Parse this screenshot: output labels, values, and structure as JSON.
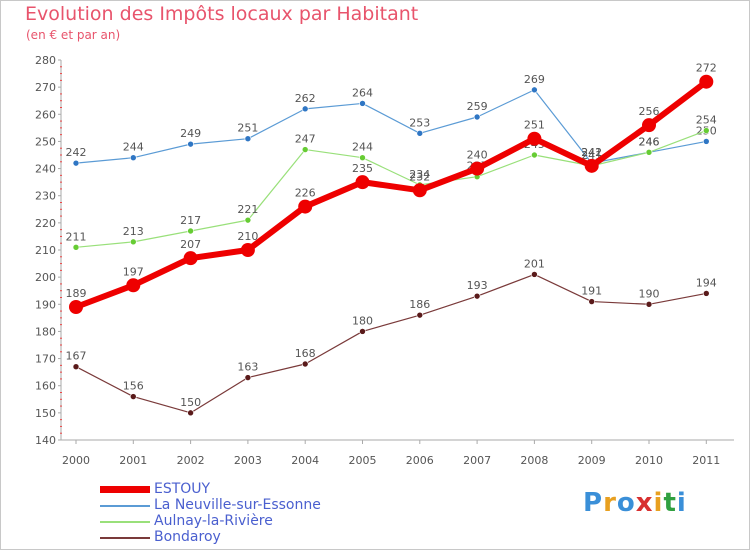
{
  "title": "Evolution des Impôts locaux par Habitant",
  "subtitle": "(en € et par an)",
  "brand": {
    "letters": [
      "P",
      "r",
      "o",
      "x",
      "i",
      "t",
      "i"
    ],
    "colors": [
      "#3a8fd8",
      "#e8a020",
      "#3a8fd8",
      "#d83030",
      "#e8a020",
      "#30a040",
      "#3a8fd8"
    ]
  },
  "chart_data": {
    "type": "line",
    "title": "Evolution des Impôts locaux par Habitant",
    "subtitle": "(en € et par an)",
    "x": [
      "2000",
      "2001",
      "2002",
      "2003",
      "2004",
      "2005",
      "2006",
      "2007",
      "2008",
      "2009",
      "2010",
      "2011"
    ],
    "ylim": [
      140,
      280
    ],
    "yticks": [
      140,
      150,
      160,
      170,
      180,
      190,
      200,
      210,
      220,
      230,
      240,
      250,
      260,
      270,
      280
    ],
    "grid": false,
    "legend_position": "bottom-left",
    "series": [
      {
        "name": "La Neuville-sur-Essonne",
        "color": "#5b9bd5",
        "dot": "#2f76c4",
        "width": 1.2,
        "marker": 3,
        "values": [
          242,
          244,
          249,
          251,
          262,
          264,
          253,
          259,
          269,
          242,
          246,
          250
        ]
      },
      {
        "name": "Aulnay-la-Rivière",
        "color": "#99e07a",
        "dot": "#66cc33",
        "width": 1.2,
        "marker": 3,
        "values": [
          211,
          213,
          217,
          221,
          247,
          244,
          234,
          237,
          245,
          241,
          246,
          254
        ]
      },
      {
        "name": "Bondaroy",
        "color": "#7a3a3a",
        "dot": "#5a1a1a",
        "width": 1.2,
        "marker": 3,
        "values": [
          167,
          156,
          150,
          163,
          168,
          180,
          186,
          193,
          201,
          191,
          190,
          194
        ]
      },
      {
        "name": "ESTOUY",
        "color": "#ee0000",
        "dot": "#ee0000",
        "width": 6,
        "marker": 7,
        "values": [
          189,
          197,
          207,
          210,
          226,
          235,
          232,
          240,
          251,
          241,
          256,
          272
        ]
      }
    ]
  }
}
